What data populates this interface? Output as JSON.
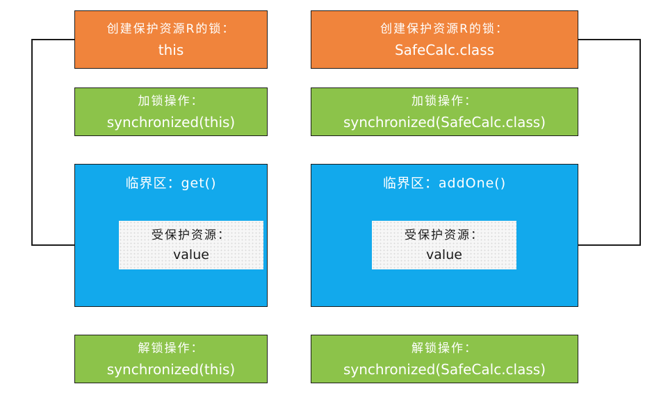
{
  "left": {
    "create_lock": {
      "label": "创建保护资源R的锁：",
      "value": "this"
    },
    "lock_op": {
      "label": "加锁操作：",
      "value": "synchronized(this)"
    },
    "critical": {
      "title": "临界区：get()"
    },
    "resource": {
      "label": "受保护资源：",
      "value": "value"
    },
    "unlock_op": {
      "label": "解锁操作：",
      "value": "synchronized(this)"
    }
  },
  "right": {
    "create_lock": {
      "label": "创建保护资源R的锁：",
      "value": "SafeCalc.class"
    },
    "lock_op": {
      "label": "加锁操作：",
      "value": "synchronized(SafeCalc.class)"
    },
    "critical": {
      "title": "临界区：addOne()"
    },
    "resource": {
      "label": "受保护资源：",
      "value": "value"
    },
    "unlock_op": {
      "label": "解锁操作：",
      "value": "synchronized(SafeCalc.class)"
    }
  },
  "colors": {
    "create_lock": "#f0843c",
    "lock_ops": "#8cc34a",
    "critical_section": "#12a9ec",
    "resource": "#f6f6f6",
    "connector": "#1a1a1a"
  }
}
